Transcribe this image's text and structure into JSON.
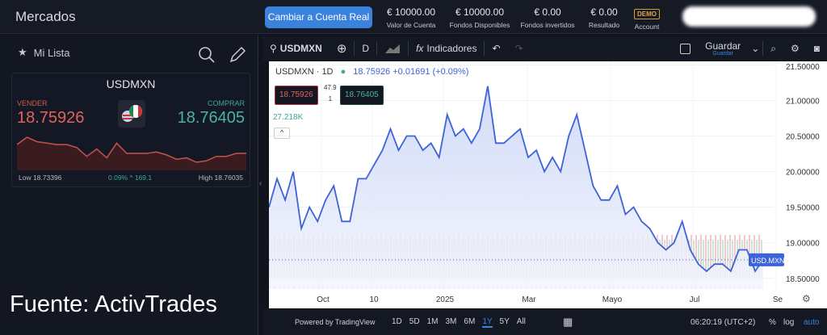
{
  "header": {
    "title": "Mercados",
    "real_button": "Cambiar a Cuenta Real",
    "stats": [
      {
        "value": "€ 10000.00",
        "label": "Valor de Cuenta"
      },
      {
        "value": "€ 10000.00",
        "label": "Fondos Disponibles"
      },
      {
        "value": "€ 0.00",
        "label": "Fondos invertidos"
      },
      {
        "value": "€ 0.00",
        "label": "Resultado"
      }
    ],
    "demo_badge": "DEMO",
    "account_label": "Account"
  },
  "watchlist": {
    "title": "Mi Lista",
    "card": {
      "symbol": "USDMXN",
      "sell_label": "VENDER",
      "sell_price": "18.75926",
      "buy_label": "COMPRAR",
      "buy_price": "18.76405",
      "low": "Low 18.73396",
      "change": "0.09% ^ 169.1",
      "high": "High 18.76035",
      "sparkline": [
        18.757,
        18.762,
        18.759,
        18.758,
        18.757,
        18.757,
        18.755,
        18.749,
        18.754,
        18.748,
        18.758,
        18.751,
        18.751,
        18.751,
        18.752,
        18.75,
        18.747,
        18.748,
        18.745,
        18.746,
        18.749,
        18.749,
        18.751,
        18.751
      ]
    }
  },
  "source": "Fuente: ActivTrades",
  "toolbar": {
    "symbol": "USDMXN",
    "interval": "D",
    "indicators": "Indicadores",
    "save": "Guardar",
    "save_sub": "Guardar"
  },
  "chart_legend": {
    "title": "USDMXN · 1D",
    "price": "18.75926",
    "change": "+0.01691 (+0.09%)",
    "sell": "18.75926",
    "spread_top": "47.9",
    "spread_bottom": "1",
    "buy": "18.76405",
    "volume": "27.218K",
    "last_label": "USD.MXN"
  },
  "chart_data": {
    "type": "area",
    "symbol": "USDMXN",
    "interval": "1D",
    "values": [
      19.5,
      19.9,
      19.6,
      20.0,
      19.2,
      19.5,
      19.3,
      19.6,
      19.8,
      19.3,
      19.3,
      19.9,
      19.9,
      20.1,
      20.3,
      20.6,
      20.3,
      20.5,
      20.5,
      20.3,
      20.4,
      20.2,
      20.8,
      20.5,
      20.6,
      20.4,
      20.6,
      21.2,
      20.4,
      20.4,
      20.5,
      20.6,
      20.2,
      20.3,
      20.0,
      20.2,
      20.0,
      20.5,
      20.8,
      20.3,
      19.8,
      19.6,
      19.6,
      19.8,
      19.4,
      19.5,
      19.3,
      19.2,
      19.0,
      18.9,
      19.0,
      19.3,
      18.9,
      18.7,
      18.6,
      18.7,
      18.7,
      18.6,
      18.9,
      18.9,
      18.6,
      18.76
    ],
    "y_ticks": [
      "21.50000",
      "21.00000",
      "20.50000",
      "20.00000",
      "19.50000",
      "19.00000",
      "18.50000"
    ],
    "y_tick_values": [
      21.5,
      21.0,
      20.5,
      20.0,
      19.5,
      19.0,
      18.5
    ],
    "ylim": [
      18.35,
      21.55
    ],
    "x_ticks": [
      "Oct",
      "10",
      "2025",
      "Mar",
      "Mayo",
      "Jul",
      "Se"
    ],
    "line_color": "#3d63d8",
    "last_value": 18.75926
  },
  "bottom": {
    "powered": "Powered by TradingView",
    "ranges": [
      "1D",
      "5D",
      "1M",
      "3M",
      "6M",
      "1Y",
      "5Y",
      "All"
    ],
    "active_range": "1Y",
    "time": "06:20:19 (UTC+2)",
    "pct": "%",
    "log": "log",
    "auto": "auto"
  }
}
